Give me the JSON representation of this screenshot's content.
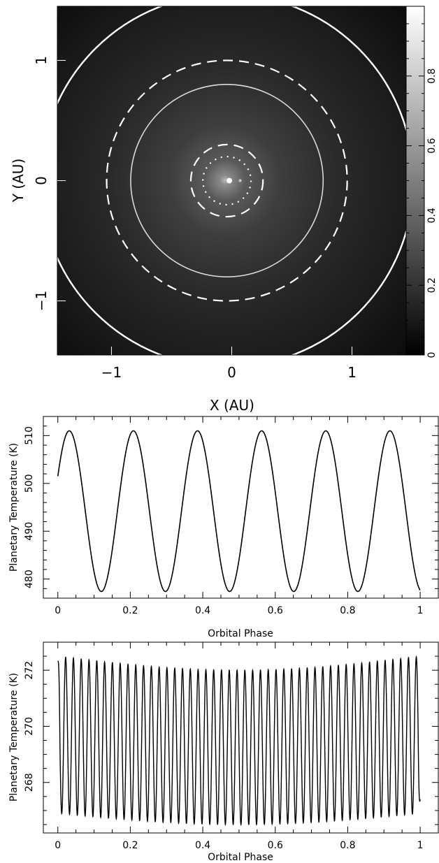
{
  "chart_data": [
    {
      "type": "heatmap",
      "xlabel": "X (AU)",
      "ylabel": "Y (AU)",
      "xlim": [
        -1.45,
        1.45
      ],
      "ylim": [
        -1.45,
        1.45
      ],
      "xticks": [
        -1,
        0,
        1
      ],
      "yticks": [
        -1,
        0,
        1
      ],
      "colorbar": {
        "min": 0,
        "max": 1,
        "ticks": [
          0,
          0.2,
          0.4,
          0.6,
          0.8
        ],
        "colormap": "grayscale",
        "low_color": "#000000",
        "high_color": "#ffffff"
      },
      "circles": [
        {
          "radius": 1.55,
          "style": "solid",
          "color": "#ffffff"
        },
        {
          "radius": 1.0,
          "style": "dashed",
          "color": "#ffffff"
        },
        {
          "radius": 0.8,
          "style": "solid",
          "color": "#d8d8d8"
        },
        {
          "radius": 0.3,
          "style": "dashed",
          "color": "#ffffff"
        },
        {
          "radius": 0.2,
          "style": "dotted",
          "color": "#ffffff"
        }
      ],
      "stars": [
        {
          "x": -0.02,
          "y": 0.0,
          "brightness": 1.0
        },
        {
          "x": 0.07,
          "y": 0.0,
          "brightness": 0.6
        }
      ]
    },
    {
      "type": "line",
      "xlabel": "Orbital Phase",
      "ylabel": "Planetary Temperature (K)",
      "xlim": [
        -0.04,
        1.05
      ],
      "ylim": [
        476,
        514
      ],
      "xticks": [
        0,
        0.2,
        0.4,
        0.6,
        0.8,
        1
      ],
      "yticks": [
        480,
        490,
        500,
        510
      ],
      "series": [
        {
          "model": "sinusoid",
          "offset": 494.2,
          "amplitude": 16.8,
          "cycles": 5.65,
          "phase_start": 0.0,
          "y_at_start": 501.5
        }
      ]
    },
    {
      "type": "line",
      "xlabel": "Orbital Phase",
      "ylabel": "Planetary Temperature (K)",
      "xlim": [
        -0.04,
        1.05
      ],
      "ylim": [
        266.2,
        273.0
      ],
      "xticks": [
        0,
        0.2,
        0.4,
        0.6,
        0.8,
        1
      ],
      "yticks": [
        268,
        270,
        272
      ],
      "series": [
        {
          "model": "modulated_sinusoid",
          "cycles": 46.5,
          "max_edge": 272.5,
          "max_mid": 272.0,
          "min_edge": 266.9,
          "min_mid": 266.5,
          "y_at_start": 272.3,
          "y_at_end": 267.4
        }
      ]
    }
  ],
  "tick_labels": {
    "map_x": [
      "−1",
      "0",
      "1"
    ],
    "map_y": [
      "−1",
      "0",
      "1"
    ],
    "colorbar": [
      "0",
      "0.2",
      "0.4",
      "0.6",
      "0.8"
    ],
    "phase": [
      "0",
      "0.2",
      "0.4",
      "0.6",
      "0.8",
      "1"
    ],
    "temp1": [
      "480",
      "490",
      "500",
      "510"
    ],
    "temp2": [
      "268",
      "270",
      "272"
    ]
  }
}
